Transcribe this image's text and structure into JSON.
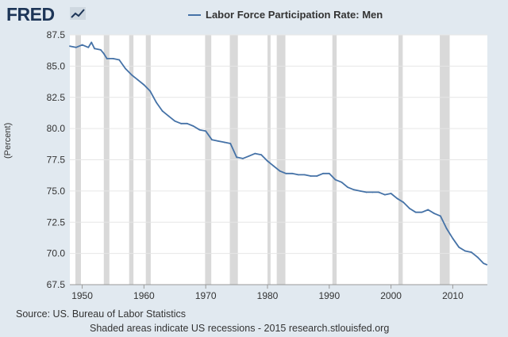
{
  "header": {
    "logo_text": "FRED",
    "logo_icon": "chart-trend-icon",
    "legend_label": "Labor Force Participation Rate: Men"
  },
  "footer": {
    "source": "Source: US. Bureau of Labor Statistics",
    "note": "Shaded areas indicate US recessions - 2015 research.stlouisfed.org"
  },
  "colors": {
    "line": "#4572a7",
    "recession": "#d9d9d9",
    "background": "#e1e9f0",
    "plot": "#ffffff",
    "grid": "#e6e6e6"
  },
  "chart_data": {
    "type": "line",
    "title": "",
    "xlabel": "",
    "ylabel": "(Percent)",
    "xlim": [
      1948,
      2015.6
    ],
    "ylim": [
      67.5,
      87.5
    ],
    "yticks": [
      "67.5",
      "70.0",
      "72.5",
      "75.0",
      "77.5",
      "80.0",
      "82.5",
      "85.0",
      "87.5"
    ],
    "xticks": [
      "1950",
      "1960",
      "1970",
      "1980",
      "1990",
      "2000",
      "2010"
    ],
    "grid": "horizontal",
    "legend_position": "top",
    "recessions": [
      [
        1948.9,
        1949.8
      ],
      [
        1953.5,
        1954.4
      ],
      [
        1957.6,
        1958.3
      ],
      [
        1960.3,
        1961.1
      ],
      [
        1969.9,
        1970.9
      ],
      [
        1973.9,
        1975.2
      ],
      [
        1980.0,
        1980.5
      ],
      [
        1981.5,
        1982.9
      ],
      [
        1990.5,
        1991.2
      ],
      [
        2001.2,
        2001.9
      ],
      [
        2007.9,
        2009.5
      ]
    ],
    "series": [
      {
        "name": "Labor Force Participation Rate: Men",
        "x": [
          1948.0,
          1949.0,
          1950.0,
          1951.0,
          1951.5,
          1952.0,
          1953.0,
          1953.5,
          1954.0,
          1955.0,
          1956.0,
          1957.0,
          1958.0,
          1959.0,
          1960.0,
          1961.0,
          1962.0,
          1963.0,
          1964.0,
          1965.0,
          1966.0,
          1967.0,
          1968.0,
          1969.0,
          1970.0,
          1971.0,
          1972.0,
          1973.0,
          1974.0,
          1975.0,
          1976.0,
          1977.0,
          1978.0,
          1979.0,
          1980.0,
          1981.0,
          1982.0,
          1983.0,
          1984.0,
          1985.0,
          1986.0,
          1987.0,
          1988.0,
          1989.0,
          1990.0,
          1991.0,
          1992.0,
          1993.0,
          1994.0,
          1995.0,
          1996.0,
          1997.0,
          1998.0,
          1999.0,
          2000.0,
          2001.0,
          2002.0,
          2003.0,
          2004.0,
          2005.0,
          2006.0,
          2007.0,
          2008.0,
          2009.0,
          2010.0,
          2011.0,
          2012.0,
          2013.0,
          2014.0,
          2015.0,
          2015.5
        ],
        "y": [
          86.6,
          86.5,
          86.7,
          86.5,
          86.9,
          86.4,
          86.3,
          86.0,
          85.6,
          85.6,
          85.5,
          84.8,
          84.3,
          83.9,
          83.5,
          83.0,
          82.1,
          81.4,
          81.0,
          80.6,
          80.4,
          80.4,
          80.2,
          79.9,
          79.8,
          79.1,
          79.0,
          78.9,
          78.8,
          77.7,
          77.6,
          77.8,
          78.0,
          77.9,
          77.4,
          77.0,
          76.6,
          76.4,
          76.4,
          76.3,
          76.3,
          76.2,
          76.2,
          76.4,
          76.4,
          75.9,
          75.7,
          75.3,
          75.1,
          75.0,
          74.9,
          74.9,
          74.9,
          74.7,
          74.8,
          74.4,
          74.1,
          73.6,
          73.3,
          73.3,
          73.5,
          73.2,
          73.0,
          72.0,
          71.2,
          70.5,
          70.2,
          70.1,
          69.7,
          69.2,
          69.1
        ]
      }
    ]
  }
}
